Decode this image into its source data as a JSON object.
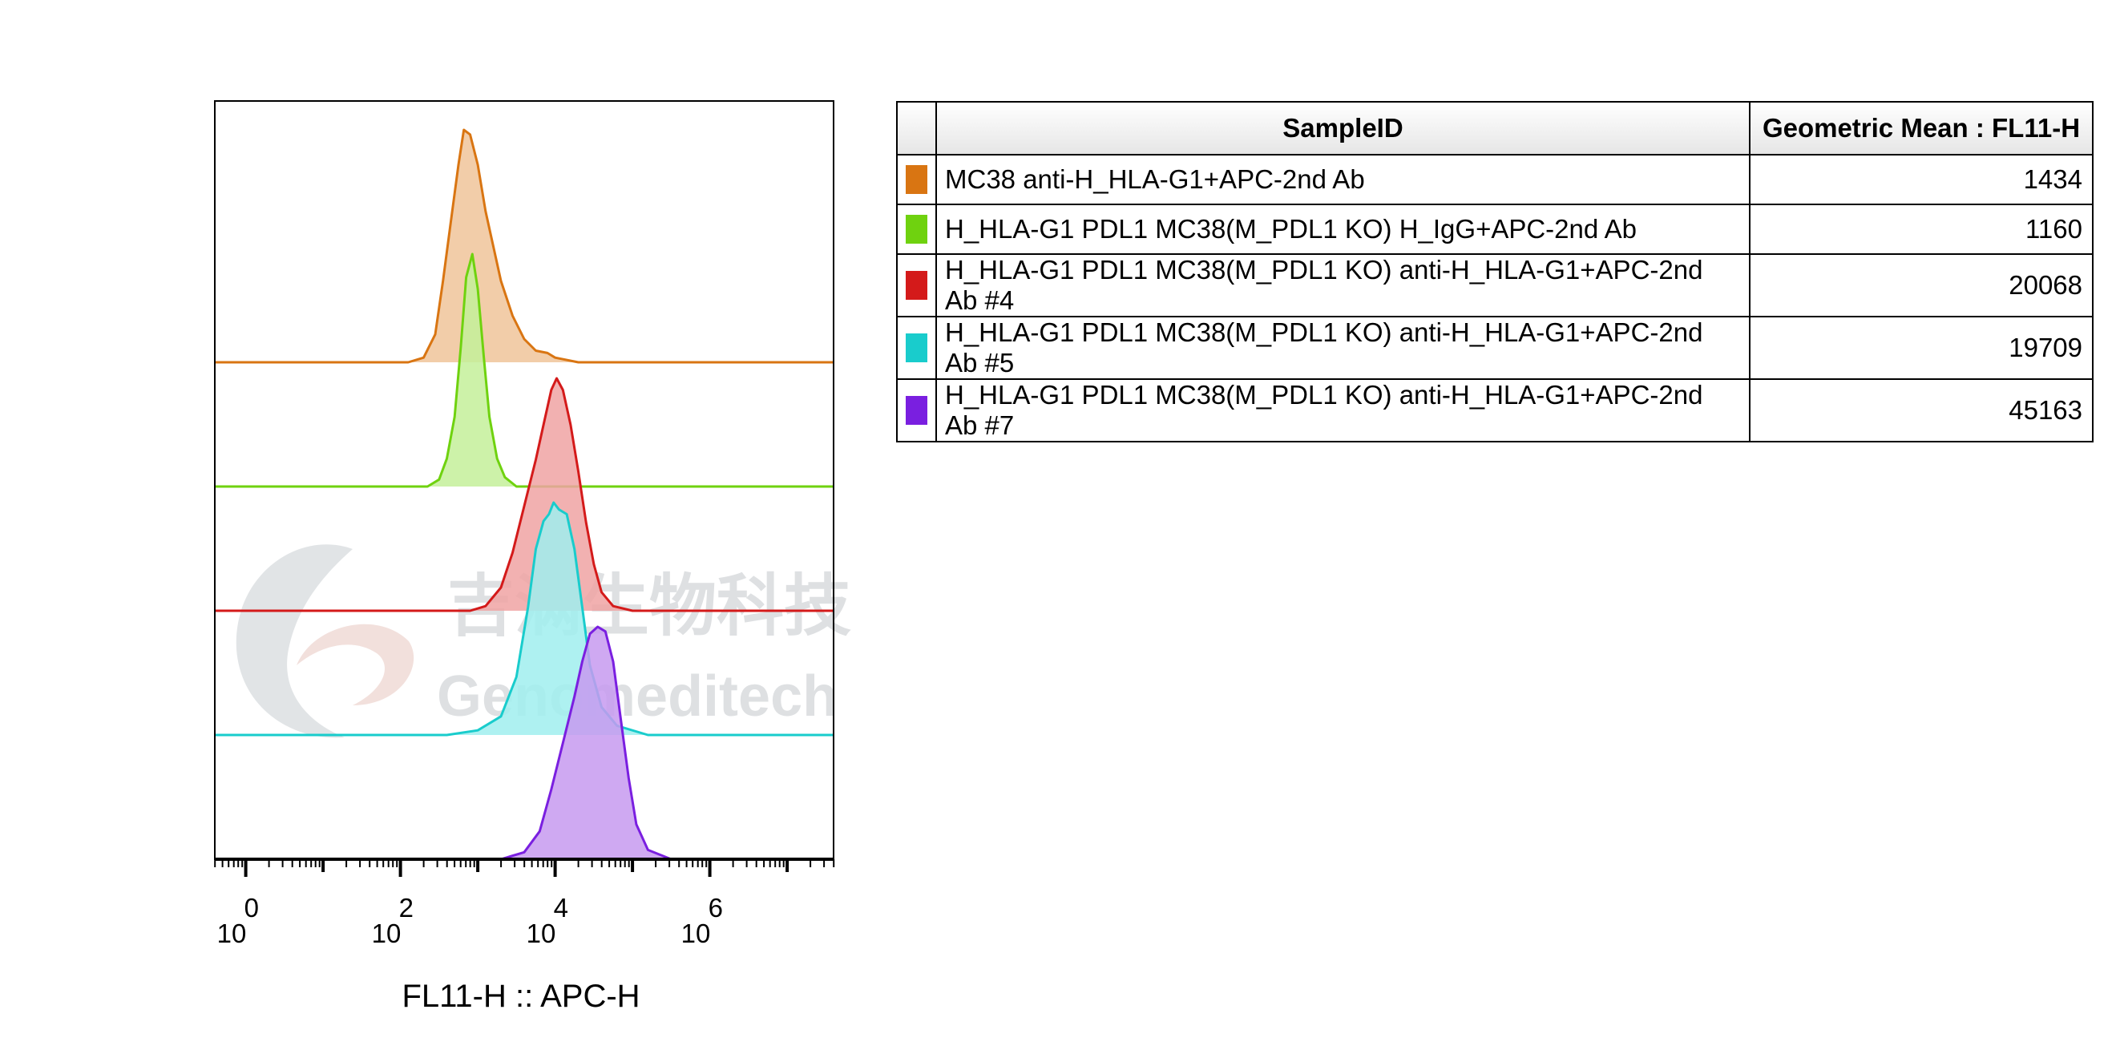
{
  "chart_data": {
    "type": "histogram",
    "title": "",
    "xlabel": "FL11-H :: APC-H",
    "ylabel": "",
    "x_scale": "log",
    "xlim_log10": [
      -0.4,
      7.6
    ],
    "x_ticks": [
      {
        "base": "10",
        "exp": "0",
        "value": 1
      },
      {
        "base": "10",
        "exp": "2",
        "value": 100
      },
      {
        "base": "10",
        "exp": "4",
        "value": 10000
      },
      {
        "base": "10",
        "exp": "6",
        "value": 1000000
      }
    ],
    "layout": "offset-stacked",
    "grid": false,
    "series": [
      {
        "name": "MC38 anti-H_HLA-G1+APC-2nd Ab",
        "color": "#d97512",
        "fill": "#f0c49a",
        "geometric_mean": "1434",
        "peak_log10": 2.85,
        "profile_log10": [
          [
            2.1,
            0
          ],
          [
            2.3,
            0.02
          ],
          [
            2.45,
            0.12
          ],
          [
            2.55,
            0.35
          ],
          [
            2.65,
            0.6
          ],
          [
            2.75,
            0.85
          ],
          [
            2.82,
            1.0
          ],
          [
            2.9,
            0.98
          ],
          [
            3.0,
            0.85
          ],
          [
            3.1,
            0.65
          ],
          [
            3.2,
            0.5
          ],
          [
            3.3,
            0.35
          ],
          [
            3.45,
            0.2
          ],
          [
            3.6,
            0.1
          ],
          [
            3.75,
            0.05
          ],
          [
            3.9,
            0.04
          ],
          [
            4.0,
            0.02
          ],
          [
            4.3,
            0
          ]
        ]
      },
      {
        "name": "H_HLA-G1 PDL1 MC38(M_PDL1 KO) H_IgG+APC-2nd Ab",
        "color": "#6fd20f",
        "fill": "#c4f09a",
        "geometric_mean": "1160",
        "peak_log10": 2.95,
        "profile_log10": [
          [
            2.35,
            0
          ],
          [
            2.5,
            0.03
          ],
          [
            2.6,
            0.12
          ],
          [
            2.7,
            0.3
          ],
          [
            2.78,
            0.6
          ],
          [
            2.85,
            0.9
          ],
          [
            2.93,
            1.0
          ],
          [
            3.0,
            0.85
          ],
          [
            3.08,
            0.55
          ],
          [
            3.15,
            0.3
          ],
          [
            3.25,
            0.12
          ],
          [
            3.35,
            0.04
          ],
          [
            3.5,
            0
          ]
        ]
      },
      {
        "name": "H_HLA-G1 PDL1 MC38(M_PDL1 KO) anti-H_HLA-G1+APC-2nd Ab #4",
        "color": "#d41a1a",
        "fill": "#f0a3a3",
        "geometric_mean": "20068",
        "peak_log10": 4.05,
        "profile_log10": [
          [
            2.9,
            0
          ],
          [
            3.1,
            0.02
          ],
          [
            3.3,
            0.1
          ],
          [
            3.45,
            0.25
          ],
          [
            3.6,
            0.45
          ],
          [
            3.75,
            0.65
          ],
          [
            3.85,
            0.8
          ],
          [
            3.95,
            0.95
          ],
          [
            4.02,
            1.0
          ],
          [
            4.1,
            0.95
          ],
          [
            4.2,
            0.8
          ],
          [
            4.3,
            0.6
          ],
          [
            4.4,
            0.38
          ],
          [
            4.5,
            0.2
          ],
          [
            4.6,
            0.08
          ],
          [
            4.75,
            0.02
          ],
          [
            5.0,
            0
          ]
        ]
      },
      {
        "name": "H_HLA-G1 PDL1 MC38(M_PDL1 KO) anti-H_HLA-G1+APC-2nd Ab #5",
        "color": "#19cccc",
        "fill": "#a0eeee",
        "geometric_mean": "19709",
        "peak_log10": 4.05,
        "profile_log10": [
          [
            2.6,
            0
          ],
          [
            3.0,
            0.02
          ],
          [
            3.3,
            0.08
          ],
          [
            3.5,
            0.25
          ],
          [
            3.65,
            0.55
          ],
          [
            3.75,
            0.8
          ],
          [
            3.85,
            0.92
          ],
          [
            3.92,
            0.95
          ],
          [
            3.98,
            1.0
          ],
          [
            4.05,
            0.97
          ],
          [
            4.15,
            0.95
          ],
          [
            4.25,
            0.8
          ],
          [
            4.35,
            0.55
          ],
          [
            4.45,
            0.3
          ],
          [
            4.6,
            0.12
          ],
          [
            4.8,
            0.04
          ],
          [
            5.2,
            0
          ]
        ]
      },
      {
        "name": "H_HLA-G1 PDL1 MC38(M_PDL1 KO) anti-H_HLA-G1+APC-2nd Ab #7",
        "color": "#7a1fe0",
        "fill": "#c79af0",
        "geometric_mean": "45163",
        "peak_log10": 4.6,
        "profile_log10": [
          [
            3.3,
            0
          ],
          [
            3.6,
            0.03
          ],
          [
            3.8,
            0.12
          ],
          [
            3.95,
            0.3
          ],
          [
            4.1,
            0.5
          ],
          [
            4.25,
            0.7
          ],
          [
            4.35,
            0.85
          ],
          [
            4.45,
            0.97
          ],
          [
            4.55,
            1.0
          ],
          [
            4.65,
            0.98
          ],
          [
            4.75,
            0.85
          ],
          [
            4.85,
            0.6
          ],
          [
            4.95,
            0.35
          ],
          [
            5.05,
            0.15
          ],
          [
            5.2,
            0.04
          ],
          [
            5.5,
            0
          ]
        ]
      }
    ]
  },
  "table": {
    "header_sample": "SampleID",
    "header_value": "Geometric Mean : FL11-H"
  },
  "watermark": {
    "cn": "吉满生物科技",
    "en": "Genomeditech"
  }
}
